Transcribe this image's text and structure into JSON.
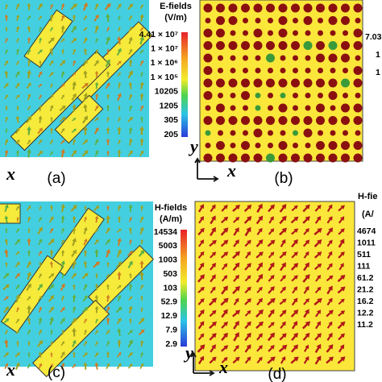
{
  "panels": [
    {
      "label": "(a)",
      "axis_x": "x"
    },
    {
      "label": "(b)",
      "axis_x": "x",
      "axis_y": "y",
      "colorbar": {
        "ticks": [
          "7.03",
          "1",
          "1"
        ]
      }
    },
    {
      "label": "(c)",
      "axis_x": "x"
    },
    {
      "label": "(d)",
      "axis_x": "x",
      "axis_y": "y",
      "colorbar": {
        "title": "H-fie",
        "unit": "(A/",
        "ticks": [
          "4674",
          "1011",
          "511",
          "111",
          "61.2",
          "21.2",
          "16.2",
          "12.2",
          "11.2"
        ]
      }
    }
  ],
  "colorbars": [
    {
      "title": "E-fields",
      "unit": "(V/m)",
      "ticks": [
        "4.41 × 10⁷",
        "1 × 10⁷",
        "1 × 10⁶",
        "1 × 10⁵",
        "10205",
        "1205",
        "305",
        "205"
      ]
    },
    {
      "title": "H-fields",
      "unit": "(A/m)",
      "ticks": [
        "14534",
        "5003",
        "1003",
        "503",
        "103",
        "52.9",
        "12.9",
        "7.9",
        "2.9"
      ]
    }
  ]
}
